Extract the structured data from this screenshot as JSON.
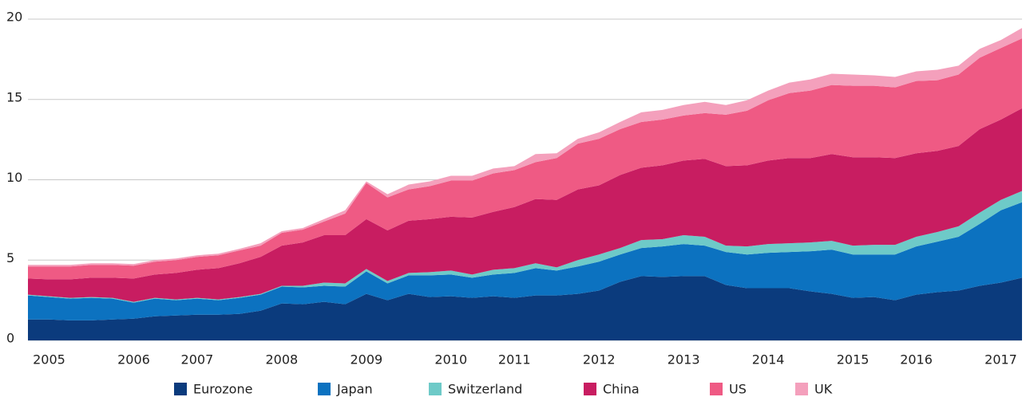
{
  "chart_data": {
    "type": "stacked_area",
    "categories": [
      null,
      "2005",
      null,
      null,
      null,
      "2006",
      null,
      null,
      "2007",
      null,
      null,
      null,
      "2008",
      null,
      null,
      null,
      "2009",
      null,
      null,
      null,
      "2010",
      null,
      null,
      "2011",
      null,
      null,
      null,
      "2012",
      null,
      null,
      null,
      "2013",
      null,
      null,
      null,
      "2014",
      null,
      null,
      null,
      "2015",
      null,
      null,
      "2016",
      null,
      null,
      null,
      "2017",
      null
    ],
    "ylim": [
      0,
      20
    ],
    "yticks": [
      0,
      5,
      10,
      15,
      20
    ],
    "grid": true,
    "legend": "bottom",
    "series": [
      {
        "name": "Eurozone",
        "color": "#0b3b7d",
        "values": [
          1.3,
          1.3,
          1.25,
          1.25,
          1.3,
          1.35,
          1.5,
          1.55,
          1.6,
          1.6,
          1.65,
          1.85,
          2.3,
          2.25,
          2.4,
          2.25,
          2.9,
          2.5,
          2.9,
          2.7,
          2.75,
          2.65,
          2.75,
          2.65,
          2.8,
          2.8,
          2.9,
          3.1,
          3.65,
          4.0,
          3.95,
          4.0,
          4.0,
          3.45,
          3.25,
          3.25,
          3.25,
          3.05,
          2.9,
          2.65,
          2.7,
          2.5,
          2.85,
          3.0,
          3.1,
          3.4,
          3.6,
          3.9
        ]
      },
      {
        "name": "Japan",
        "color": "#0c72c0",
        "values": [
          1.5,
          1.4,
          1.35,
          1.4,
          1.3,
          1.0,
          1.1,
          0.95,
          1.0,
          0.9,
          1.0,
          1.0,
          1.05,
          1.05,
          1.0,
          1.1,
          1.4,
          1.05,
          1.15,
          1.35,
          1.35,
          1.25,
          1.35,
          1.55,
          1.7,
          1.55,
          1.7,
          1.8,
          1.7,
          1.75,
          1.9,
          2.0,
          1.9,
          2.05,
          2.1,
          2.2,
          2.25,
          2.5,
          2.75,
          2.7,
          2.65,
          2.85,
          3.0,
          3.15,
          3.35,
          3.85,
          4.5,
          4.7
        ]
      },
      {
        "name": "Switzerland",
        "color": "#6ecac8",
        "values": [
          0.05,
          0.05,
          0.05,
          0.05,
          0.05,
          0.05,
          0.05,
          0.05,
          0.05,
          0.05,
          0.05,
          0.05,
          0.05,
          0.1,
          0.2,
          0.2,
          0.15,
          0.15,
          0.15,
          0.2,
          0.25,
          0.2,
          0.3,
          0.3,
          0.3,
          0.2,
          0.4,
          0.45,
          0.4,
          0.5,
          0.45,
          0.55,
          0.55,
          0.4,
          0.5,
          0.55,
          0.55,
          0.55,
          0.55,
          0.55,
          0.6,
          0.6,
          0.6,
          0.6,
          0.65,
          0.7,
          0.65,
          0.7
        ]
      },
      {
        "name": "China",
        "color": "#c81d61",
        "values": [
          1.0,
          1.05,
          1.15,
          1.2,
          1.25,
          1.45,
          1.45,
          1.65,
          1.75,
          1.95,
          2.1,
          2.3,
          2.5,
          2.7,
          2.95,
          3.0,
          3.1,
          3.15,
          3.25,
          3.3,
          3.35,
          3.55,
          3.6,
          3.8,
          4.0,
          4.2,
          4.4,
          4.3,
          4.55,
          4.5,
          4.6,
          4.65,
          4.85,
          4.95,
          5.05,
          5.2,
          5.3,
          5.25,
          5.4,
          5.5,
          5.45,
          5.4,
          5.2,
          5.05,
          5.0,
          5.2,
          5.0,
          5.15
        ]
      },
      {
        "name": "US",
        "color": "#ef5a84",
        "values": [
          0.75,
          0.8,
          0.8,
          0.8,
          0.8,
          0.8,
          0.8,
          0.8,
          0.8,
          0.8,
          0.8,
          0.7,
          0.8,
          0.8,
          0.85,
          1.35,
          2.25,
          2.05,
          1.95,
          2.05,
          2.25,
          2.3,
          2.4,
          2.3,
          2.3,
          2.6,
          2.85,
          2.9,
          2.85,
          2.85,
          2.85,
          2.8,
          2.85,
          3.2,
          3.4,
          3.75,
          4.05,
          4.2,
          4.3,
          4.45,
          4.45,
          4.4,
          4.5,
          4.4,
          4.45,
          4.45,
          4.45,
          4.35
        ]
      },
      {
        "name": "UK",
        "color": "#f4a0bc",
        "values": [
          0.1,
          0.1,
          0.1,
          0.1,
          0.1,
          0.1,
          0.1,
          0.1,
          0.1,
          0.1,
          0.1,
          0.15,
          0.1,
          0.1,
          0.15,
          0.2,
          0.1,
          0.2,
          0.3,
          0.3,
          0.3,
          0.3,
          0.3,
          0.25,
          0.5,
          0.3,
          0.3,
          0.4,
          0.45,
          0.6,
          0.6,
          0.65,
          0.7,
          0.6,
          0.65,
          0.6,
          0.65,
          0.7,
          0.7,
          0.7,
          0.65,
          0.65,
          0.6,
          0.65,
          0.55,
          0.55,
          0.5,
          0.65
        ]
      }
    ]
  }
}
